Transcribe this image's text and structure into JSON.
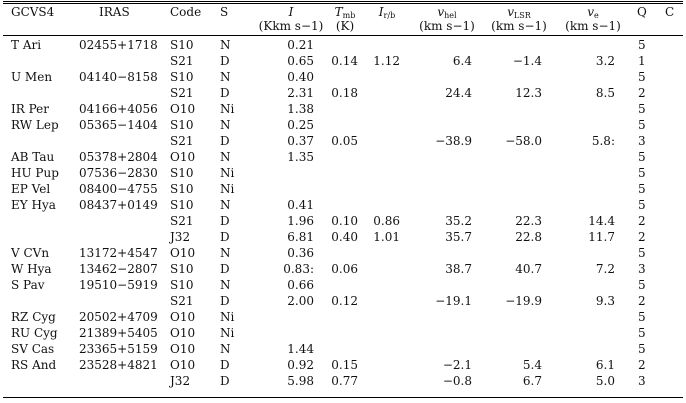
{
  "header": {
    "gcvs4": "GCVS4",
    "iras": "IRAS",
    "code": "Code",
    "s": "S",
    "i": "I",
    "i_unit": "(Kkm s−1)",
    "tmb": "T",
    "tmb_sub": "mb",
    "tmb_unit": "(K)",
    "irb": "I",
    "irb_sub": "r/b",
    "vhel": "v",
    "vhel_sub": "hel",
    "vhel_unit": "(km s−1)",
    "vlsr": "v",
    "vlsr_sub": "LSR",
    "vlsr_unit": "(km s−1)",
    "ve": "v",
    "ve_sub": "e",
    "ve_unit": "(km s−1)",
    "q": "Q",
    "c": "C"
  },
  "rows": [
    {
      "gcvs": "T Ari",
      "iras": "02455+1718",
      "code": "S10",
      "s": "N",
      "i": "0.21",
      "tmb": "",
      "irb": "",
      "vhel": "",
      "vlsr": "",
      "ve": "",
      "q": "5",
      "c": ""
    },
    {
      "gcvs": "",
      "iras": "",
      "code": "S21",
      "s": "D",
      "i": "0.65",
      "tmb": "0.14",
      "irb": "1.12",
      "vhel": "6.4",
      "vlsr": "−1.4",
      "ve": "3.2",
      "q": "1",
      "c": ""
    },
    {
      "gcvs": "U Men",
      "iras": "04140−8158",
      "code": "S10",
      "s": "N",
      "i": "0.40",
      "tmb": "",
      "irb": "",
      "vhel": "",
      "vlsr": "",
      "ve": "",
      "q": "5",
      "c": ""
    },
    {
      "gcvs": "",
      "iras": "",
      "code": "S21",
      "s": "D",
      "i": "2.31",
      "tmb": "0.18",
      "irb": "",
      "vhel": "24.4",
      "vlsr": "12.3",
      "ve": "8.5",
      "q": "2",
      "c": ""
    },
    {
      "gcvs": "IR Per",
      "iras": "04166+4056",
      "code": "O10",
      "s": "Ni",
      "i": "1.38",
      "tmb": "",
      "irb": "",
      "vhel": "",
      "vlsr": "",
      "ve": "",
      "q": "5",
      "c": ""
    },
    {
      "gcvs": "RW Lep",
      "iras": "05365−1404",
      "code": "S10",
      "s": "N",
      "i": "0.25",
      "tmb": "",
      "irb": "",
      "vhel": "",
      "vlsr": "",
      "ve": "",
      "q": "5",
      "c": ""
    },
    {
      "gcvs": "",
      "iras": "",
      "code": "S21",
      "s": "D",
      "i": "0.37",
      "tmb": "0.05",
      "irb": "",
      "vhel": "−38.9",
      "vlsr": "−58.0",
      "ve": "5.8:",
      "q": "3",
      "c": ""
    },
    {
      "gcvs": "AB Tau",
      "iras": "05378+2804",
      "code": "O10",
      "s": "N",
      "i": "1.35",
      "tmb": "",
      "irb": "",
      "vhel": "",
      "vlsr": "",
      "ve": "",
      "q": "5",
      "c": ""
    },
    {
      "gcvs": "HU Pup",
      "iras": "07536−2830",
      "code": "S10",
      "s": "Ni",
      "i": "",
      "tmb": "",
      "irb": "",
      "vhel": "",
      "vlsr": "",
      "ve": "",
      "q": "5",
      "c": ""
    },
    {
      "gcvs": "EP Vel",
      "iras": "08400−4755",
      "code": "S10",
      "s": "Ni",
      "i": "",
      "tmb": "",
      "irb": "",
      "vhel": "",
      "vlsr": "",
      "ve": "",
      "q": "5",
      "c": ""
    },
    {
      "gcvs": "EY Hya",
      "iras": "08437+0149",
      "code": "S10",
      "s": "N",
      "i": "0.41",
      "tmb": "",
      "irb": "",
      "vhel": "",
      "vlsr": "",
      "ve": "",
      "q": "5",
      "c": ""
    },
    {
      "gcvs": "",
      "iras": "",
      "code": "S21",
      "s": "D",
      "i": "1.96",
      "tmb": "0.10",
      "irb": "0.86",
      "vhel": "35.2",
      "vlsr": "22.3",
      "ve": "14.4",
      "q": "2",
      "c": ""
    },
    {
      "gcvs": "",
      "iras": "",
      "code": "J32",
      "s": "D",
      "i": "6.81",
      "tmb": "0.40",
      "irb": "1.01",
      "vhel": "35.7",
      "vlsr": "22.8",
      "ve": "11.7",
      "q": "2",
      "c": ""
    },
    {
      "gcvs": "V CVn",
      "iras": "13172+4547",
      "code": "O10",
      "s": "N",
      "i": "0.36",
      "tmb": "",
      "irb": "",
      "vhel": "",
      "vlsr": "",
      "ve": "",
      "q": "5",
      "c": ""
    },
    {
      "gcvs": "W Hya",
      "iras": "13462−2807",
      "code": "S10",
      "s": "D",
      "i": "0.83:",
      "tmb": "0.06",
      "irb": "",
      "vhel": "38.7",
      "vlsr": "40.7",
      "ve": "7.2",
      "q": "3",
      "c": ""
    },
    {
      "gcvs": "S Pav",
      "iras": "19510−5919",
      "code": "S10",
      "s": "N",
      "i": "0.66",
      "tmb": "",
      "irb": "",
      "vhel": "",
      "vlsr": "",
      "ve": "",
      "q": "5",
      "c": ""
    },
    {
      "gcvs": "",
      "iras": "",
      "code": "S21",
      "s": "D",
      "i": "2.00",
      "tmb": "0.12",
      "irb": "",
      "vhel": "−19.1",
      "vlsr": "−19.9",
      "ve": "9.3",
      "q": "2",
      "c": ""
    },
    {
      "gcvs": "RZ Cyg",
      "iras": "20502+4709",
      "code": "O10",
      "s": "Ni",
      "i": "",
      "tmb": "",
      "irb": "",
      "vhel": "",
      "vlsr": "",
      "ve": "",
      "q": "5",
      "c": ""
    },
    {
      "gcvs": "RU Cyg",
      "iras": "21389+5405",
      "code": "O10",
      "s": "Ni",
      "i": "",
      "tmb": "",
      "irb": "",
      "vhel": "",
      "vlsr": "",
      "ve": "",
      "q": "5",
      "c": ""
    },
    {
      "gcvs": "SV Cas",
      "iras": "23365+5159",
      "code": "O10",
      "s": "N",
      "i": "1.44",
      "tmb": "",
      "irb": "",
      "vhel": "",
      "vlsr": "",
      "ve": "",
      "q": "5",
      "c": ""
    },
    {
      "gcvs": "RS And",
      "iras": "23528+4821",
      "code": "O10",
      "s": "D",
      "i": "0.92",
      "tmb": "0.15",
      "irb": "",
      "vhel": "−2.1",
      "vlsr": "5.4",
      "ve": "6.1",
      "q": "2",
      "c": ""
    },
    {
      "gcvs": "",
      "iras": "",
      "code": "J32",
      "s": "D",
      "i": "5.98",
      "tmb": "0.77",
      "irb": "",
      "vhel": "−0.8",
      "vlsr": "6.7",
      "ve": "5.0",
      "q": "3",
      "c": ""
    }
  ]
}
